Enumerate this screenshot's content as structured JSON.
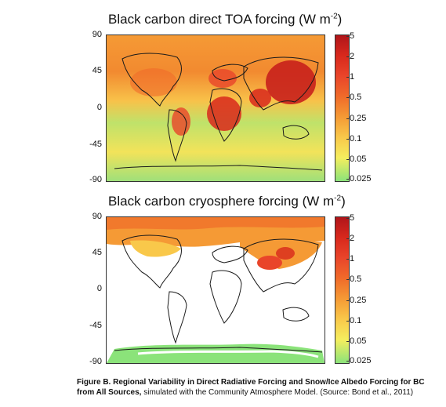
{
  "panels": [
    {
      "title_main": "Black carbon direct TOA forcing (W m",
      "title_sup": "-2",
      "title_end": ")",
      "lat_labels": [
        "90",
        "45",
        "0",
        "-45",
        "-90"
      ],
      "colorbar_ticks": [
        "5",
        "2",
        "1",
        "0.5",
        "0.25",
        "0.1",
        "0.05",
        "0.025"
      ]
    },
    {
      "title_main": "Black carbon cryosphere forcing (W m",
      "title_sup": "-2",
      "title_end": ")",
      "lat_labels": [
        "90",
        "45",
        "0",
        "-45",
        "-90"
      ],
      "colorbar_ticks": [
        "5",
        "2",
        "1",
        "0.5",
        "0.25",
        "0.1",
        "0.05",
        "0.025"
      ]
    }
  ],
  "caption": {
    "bold": "Figure B.  Regional Variability in Direct Radiative Forcing and Snow/Ice Albedo Forcing for BC from All Sources,",
    "rest": " simulated with the Community Atmosphere Model. (Source: Bond et al., 2011)"
  },
  "colors": {
    "high": "#b0151a",
    "mid": "#f59a35",
    "low": "#8be37a",
    "coast": "#1a1a1a"
  }
}
